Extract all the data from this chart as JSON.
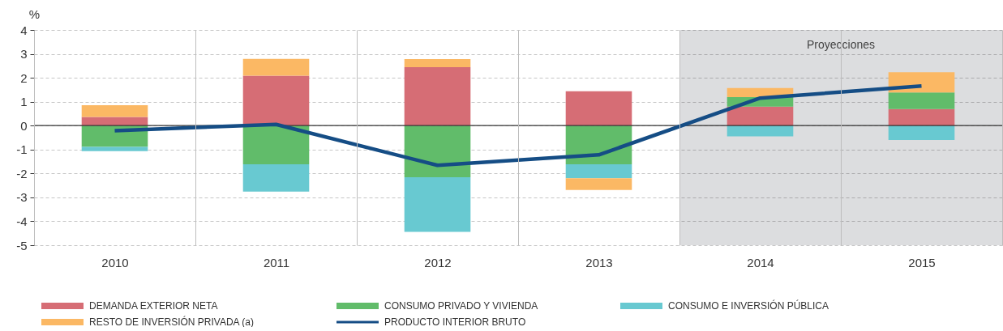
{
  "chart_data": {
    "type": "bar",
    "stacked": true,
    "categories": [
      "2010",
      "2011",
      "2012",
      "2013",
      "2014",
      "2015"
    ],
    "ylabel": "%",
    "ylim": [
      -5,
      4
    ],
    "yticks": [
      -5,
      -4,
      -3,
      -2,
      -1,
      0,
      1,
      2,
      3,
      4
    ],
    "grid": true,
    "legend": "bottom",
    "series": [
      {
        "name": "DEMANDA EXTERIOR NETA",
        "color": "#d66d75",
        "values": [
          0.36,
          2.09,
          2.44,
          1.44,
          0.79,
          0.69
        ]
      },
      {
        "name": "CONSUMO PRIVADO Y VIVIENDA",
        "color": "#61bc6a",
        "values": [
          -0.89,
          -1.62,
          -2.16,
          -1.62,
          0.4,
          0.7
        ]
      },
      {
        "name": "CONSUMO E INVERSIÓN PÚBLICA",
        "color": "#68c9d1",
        "values": [
          -0.18,
          -1.14,
          -2.28,
          -0.58,
          -0.45,
          -0.6
        ]
      },
      {
        "name": "RESTO DE INVERSIÓN PRIVADA (a)",
        "color": "#fbb864",
        "values": [
          0.49,
          0.7,
          0.34,
          -0.49,
          0.38,
          0.84
        ]
      },
      {
        "name": "PRODUCTO INTERIOR BRUTO",
        "type": "line",
        "color": "#154d85",
        "values": [
          -0.21,
          0.05,
          -1.66,
          -1.22,
          1.15,
          1.66
        ]
      }
    ],
    "bands": [
      {
        "axis": "x",
        "from": "2014",
        "to": "2015",
        "label": "Proyecciones",
        "color": "#dcdddf"
      }
    ],
    "ref_lines": [
      {
        "axis": "y",
        "value": 0,
        "color": "#333333"
      }
    ]
  }
}
